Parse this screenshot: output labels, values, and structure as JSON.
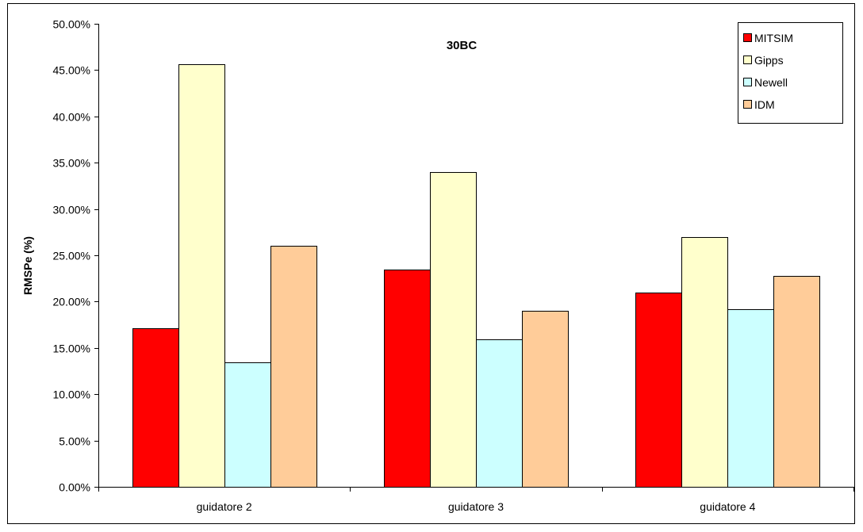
{
  "chart_data": {
    "type": "bar",
    "title": "30BC",
    "xlabel": "",
    "ylabel": "RMSPe (%)",
    "ylim": [
      0,
      0.5
    ],
    "y_tick_step": 0.05,
    "y_tick_format": "percent_2dp",
    "grid": false,
    "legend_position": "top-right",
    "categories": [
      "guidatore 2",
      "guidatore 3",
      "guidatore 4"
    ],
    "series": [
      {
        "name": "MITSIM",
        "color": "#ff0000",
        "values": [
          0.171,
          0.235,
          0.21
        ]
      },
      {
        "name": "Gipps",
        "color": "#ffffcc",
        "values": [
          0.456,
          0.34,
          0.27
        ]
      },
      {
        "name": "Newell",
        "color": "#ccffff",
        "values": [
          0.134,
          0.159,
          0.192
        ]
      },
      {
        "name": "IDM",
        "color": "#ffcc99",
        "values": [
          0.26,
          0.19,
          0.228
        ]
      }
    ]
  }
}
